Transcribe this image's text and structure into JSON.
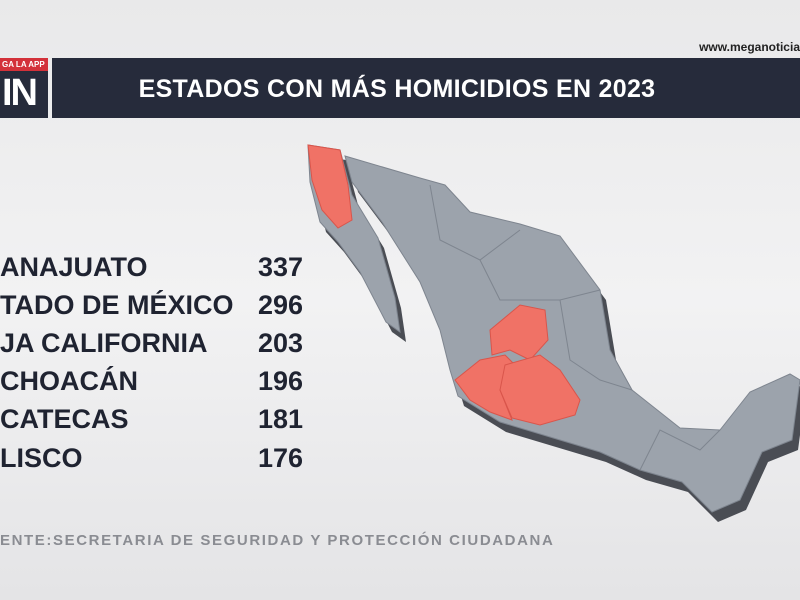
{
  "header": {
    "title": "ESTADOS CON MÁS HOMICIDIOS EN 2023",
    "logo_tagline": "GA LA APP",
    "logo": "IN",
    "url": "www.meganoticia"
  },
  "table": {
    "rows": [
      [
        "ANAJUATO",
        "337"
      ],
      [
        "TADO DE MÉXICO",
        "296"
      ],
      [
        "JA CALIFORNIA",
        "203"
      ],
      [
        "CHOACÁN",
        "196"
      ],
      [
        "CATECAS",
        "181"
      ],
      [
        "LISCO",
        "176"
      ]
    ]
  },
  "source": "ENTE:SECRETARIA DE SEGURIDAD Y PROTECCIÓN CIUDADANA"
}
